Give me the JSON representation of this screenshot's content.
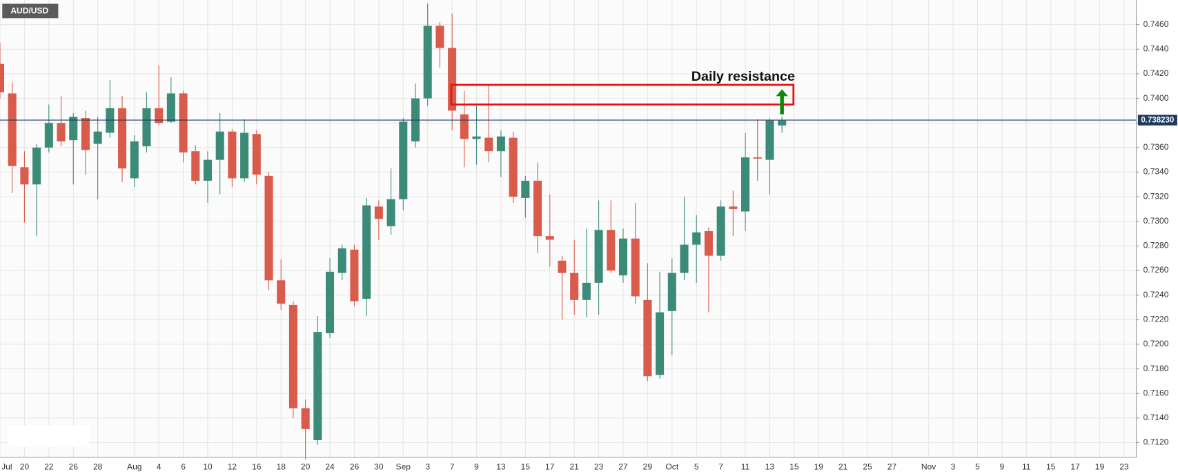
{
  "chart_data": {
    "type": "candlestick",
    "title": "AUD/USD",
    "categories": [
      "Jul",
      null,
      "20",
      null,
      "22",
      null,
      "26",
      null,
      "28",
      null,
      null,
      "Aug",
      null,
      "4",
      null,
      "6",
      null,
      "10",
      null,
      "12",
      null,
      "16",
      null,
      "18",
      null,
      "20",
      null,
      "24",
      null,
      "26",
      null,
      "30",
      null,
      "Sep",
      null,
      "3",
      null,
      "7",
      null,
      "9",
      null,
      "13",
      null,
      "15",
      null,
      "17",
      null,
      "21",
      null,
      "23",
      null,
      "27",
      null,
      "29",
      null,
      "Oct",
      null,
      "5",
      null,
      "7",
      null,
      "11",
      null,
      "13",
      null,
      "15",
      null,
      "19",
      null,
      "21",
      null,
      "25",
      null,
      "27",
      null,
      null,
      "Nov",
      null,
      "3",
      null,
      "5",
      null,
      "9",
      null,
      "11",
      null,
      "15",
      null,
      "17",
      null,
      "19",
      null,
      "23",
      null
    ],
    "open": [
      0.7428,
      0.7404,
      0.7344,
      0.733,
      0.736,
      0.738,
      0.7366,
      0.7384,
      0.7363,
      0.7372,
      0.7392,
      0.7335,
      0.7361,
      0.7392,
      0.7381,
      0.7404,
      0.7357,
      0.7333,
      0.735,
      0.7373,
      0.7335,
      0.7371,
      0.7337,
      0.7252,
      0.7232,
      0.7148,
      0.7122,
      0.7209,
      0.7258,
      0.7277,
      0.7237,
      0.7312,
      0.7296,
      0.7318,
      0.7365,
      0.74,
      0.7459,
      0.7441,
      0.7387,
      0.7367,
      0.7368,
      0.7357,
      0.7368,
      0.7319,
      0.7333,
      0.7288,
      0.7268,
      0.7258,
      0.7236,
      0.725,
      0.7293,
      0.7256,
      0.7286,
      0.7236,
      0.7175,
      0.7227,
      0.7258,
      0.7281,
      0.7292,
      0.7272,
      0.7312,
      0.7308,
      0.7352,
      0.735,
      0.7378,
      null,
      null,
      null,
      null,
      null,
      null,
      null,
      null,
      null,
      null,
      null,
      null,
      null,
      null,
      null,
      null,
      null,
      null,
      null,
      null,
      null,
      null,
      null,
      null,
      null,
      null,
      null,
      null,
      null
    ],
    "high": [
      0.7445,
      0.7413,
      0.7357,
      0.7363,
      0.7395,
      0.7402,
      0.7388,
      0.739,
      0.7385,
      0.7415,
      0.7402,
      0.737,
      0.7405,
      0.7427,
      0.7417,
      0.7406,
      0.7362,
      0.7357,
      0.7388,
      0.7375,
      0.7383,
      0.7374,
      0.734,
      0.7269,
      0.7235,
      0.7155,
      0.7223,
      0.727,
      0.7281,
      0.7281,
      0.7319,
      0.7317,
      0.7343,
      0.7384,
      0.7412,
      0.7477,
      0.7462,
      0.7469,
      0.7406,
      0.7394,
      0.7411,
      0.7374,
      0.7373,
      0.7337,
      0.7348,
      0.7322,
      0.7272,
      0.7285,
      0.7294,
      0.7317,
      0.7317,
      0.7294,
      0.7315,
      0.7266,
      0.7259,
      0.727,
      0.732,
      0.7305,
      0.7295,
      0.7317,
      0.7325,
      0.7372,
      0.7383,
      0.7384,
      0.7385,
      null,
      null,
      null,
      null,
      null,
      null,
      null,
      null,
      null,
      null,
      null,
      null,
      null,
      null,
      null,
      null,
      null,
      null,
      null,
      null,
      null,
      null,
      null,
      null,
      null,
      null,
      null,
      null,
      null
    ],
    "low": [
      0.74,
      0.7323,
      0.7299,
      0.7288,
      0.7356,
      0.7361,
      0.733,
      0.7338,
      0.7318,
      0.7368,
      0.7332,
      0.7328,
      0.7356,
      0.7378,
      0.738,
      0.7348,
      0.733,
      0.7315,
      0.7322,
      0.7328,
      0.7332,
      0.733,
      0.7244,
      0.7228,
      0.714,
      0.7106,
      0.7118,
      0.7205,
      0.7252,
      0.7231,
      0.7223,
      0.7285,
      0.7289,
      0.7309,
      0.736,
      0.7394,
      0.7425,
      0.7374,
      0.7344,
      0.7346,
      0.7348,
      0.7336,
      0.7315,
      0.7303,
      0.7274,
      0.7263,
      0.722,
      0.7224,
      0.7222,
      0.7224,
      0.7258,
      0.725,
      0.7233,
      0.717,
      0.7172,
      0.7191,
      0.7252,
      0.725,
      0.7226,
      0.7268,
      0.7288,
      0.7292,
      0.7333,
      0.7322,
      0.7372,
      null,
      null,
      null,
      null,
      null,
      null,
      null,
      null,
      null,
      null,
      null,
      null,
      null,
      null,
      null,
      null,
      null,
      null,
      null,
      null,
      null,
      null,
      null,
      null,
      null,
      null,
      null,
      null,
      null
    ],
    "close": [
      0.7405,
      0.7345,
      0.733,
      0.736,
      0.738,
      0.7365,
      0.7385,
      0.7358,
      0.7373,
      0.7392,
      0.7343,
      0.7365,
      0.7392,
      0.738,
      0.7404,
      0.7356,
      0.7333,
      0.735,
      0.7373,
      0.7335,
      0.7372,
      0.7338,
      0.7252,
      0.7233,
      0.7148,
      0.7131,
      0.721,
      0.7259,
      0.7278,
      0.7235,
      0.7313,
      0.7302,
      0.7318,
      0.7381,
      0.74,
      0.7459,
      0.7441,
      0.739,
      0.7367,
      0.7369,
      0.7357,
      0.7369,
      0.732,
      0.7333,
      0.7288,
      0.7285,
      0.7258,
      0.7236,
      0.725,
      0.7293,
      0.726,
      0.7286,
      0.7239,
      0.7174,
      0.7226,
      0.7258,
      0.7281,
      0.7291,
      0.7272,
      0.7312,
      0.731,
      0.7352,
      0.7351,
      0.7382,
      0.7382,
      null,
      null,
      null,
      null,
      null,
      null,
      null,
      null,
      null,
      null,
      null,
      null,
      null,
      null,
      null,
      null,
      null,
      null,
      null,
      null,
      null,
      null,
      null,
      null,
      null,
      null,
      null,
      null,
      null
    ],
    "up_color": "#3b8b78",
    "down_color": "#d95b4b",
    "ylim": [
      0.7108,
      0.748
    ],
    "yticks": [
      {
        "value": 0.712,
        "label": "0.7120"
      },
      {
        "value": 0.714,
        "label": "0.7140"
      },
      {
        "value": 0.716,
        "label": "0.7160"
      },
      {
        "value": 0.718,
        "label": "0.7180"
      },
      {
        "value": 0.72,
        "label": "0.7200"
      },
      {
        "value": 0.722,
        "label": "0.7220"
      },
      {
        "value": 0.724,
        "label": "0.7240"
      },
      {
        "value": 0.726,
        "label": "0.7260"
      },
      {
        "value": 0.728,
        "label": "0.7280"
      },
      {
        "value": 0.73,
        "label": "0.7300"
      },
      {
        "value": 0.732,
        "label": "0.7320"
      },
      {
        "value": 0.734,
        "label": "0.7340"
      },
      {
        "value": 0.736,
        "label": "0.7360"
      },
      {
        "value": 0.738,
        "label": "0.7380"
      },
      {
        "value": 0.74,
        "label": "0.7400"
      },
      {
        "value": 0.742,
        "label": "0.7420"
      },
      {
        "value": 0.744,
        "label": "0.7440"
      },
      {
        "value": 0.746,
        "label": "0.7460"
      }
    ],
    "grid": true,
    "last_price": {
      "value": 0.73823,
      "label": "0.738230"
    },
    "resistance": {
      "label": "Daily resistance",
      "low": 0.7395,
      "high": 0.7411
    }
  }
}
